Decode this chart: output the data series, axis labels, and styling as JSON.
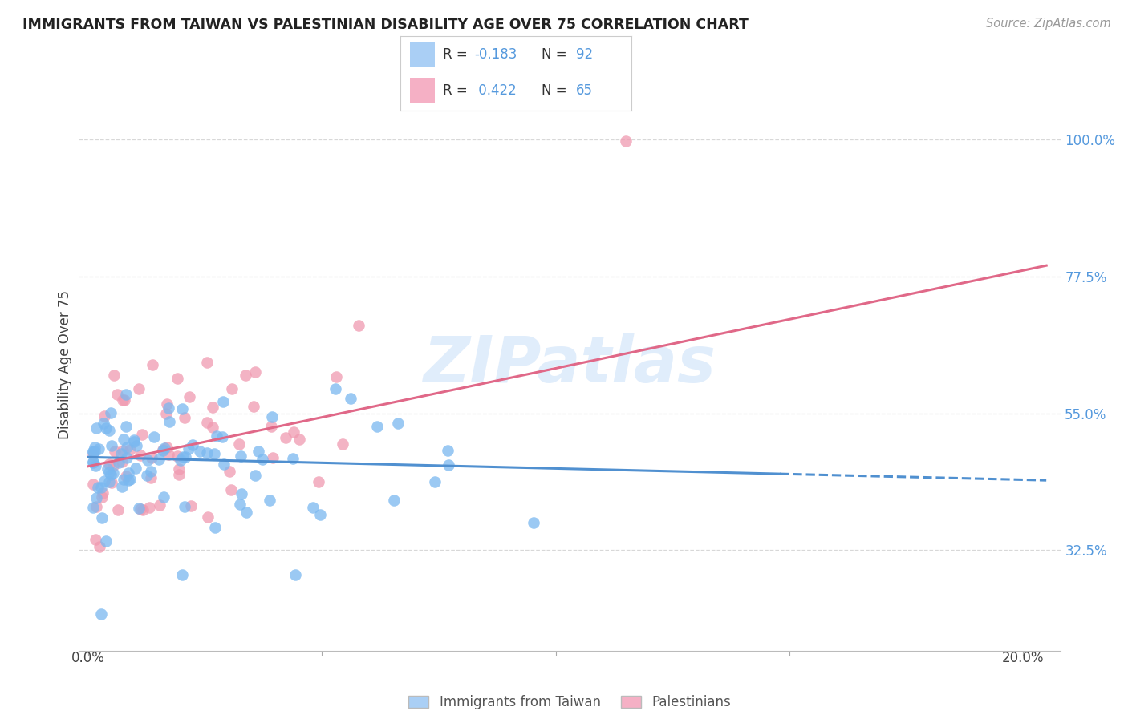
{
  "title": "IMMIGRANTS FROM TAIWAN VS PALESTINIAN DISABILITY AGE OVER 75 CORRELATION CHART",
  "source": "Source: ZipAtlas.com",
  "ylabel": "Disability Age Over 75",
  "ytick_labels": [
    "100.0%",
    "77.5%",
    "55.0%",
    "32.5%"
  ],
  "ytick_values": [
    1.0,
    0.775,
    0.55,
    0.325
  ],
  "xtick_labels": [
    "0.0%",
    "20.0%"
  ],
  "xtick_values": [
    0.0,
    0.2
  ],
  "xlim": [
    -0.002,
    0.208
  ],
  "ylim": [
    0.16,
    1.1
  ],
  "plot_ylim": [
    0.16,
    1.1
  ],
  "taiwan_scatter_color": "#7ab8f0",
  "palestinians_scatter_color": "#f09ab0",
  "taiwan_line_color": "#5090d0",
  "palestinians_line_color": "#e06888",
  "taiwan_line_solid_end_x": 0.148,
  "taiwan_line_x0": 0.0,
  "taiwan_line_x1": 0.205,
  "taiwan_line_y0": 0.478,
  "taiwan_line_y1": 0.44,
  "palestinians_line_x0": 0.0,
  "palestinians_line_x1": 0.205,
  "palestinians_line_y0": 0.463,
  "palestinians_line_y1": 0.793,
  "watermark_text": "ZIPatlas",
  "watermark_color": "#c8dff8",
  "legend_taiwan_color": "#aacff5",
  "legend_pal_color": "#f5b0c5",
  "legend_R_taiwan": "-0.183",
  "legend_N_taiwan": "92",
  "legend_R_pal": "0.422",
  "legend_N_pal": "65",
  "bottom_legend_taiwan": "Immigrants from Taiwan",
  "bottom_legend_pal": "Palestinians",
  "grid_color": "#d8d8d8",
  "title_color": "#222222",
  "source_color": "#999999",
  "right_tick_color": "#5599dd",
  "taiwan_R": -0.183,
  "palestinians_R": 0.422
}
